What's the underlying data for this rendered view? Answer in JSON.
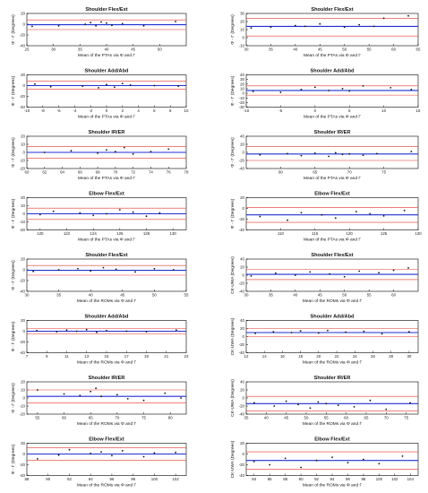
{
  "chart_data": [
    {
      "type": "scatter",
      "title": "Shoulder Flex/Ext",
      "ylabel": "Φ - Γ",
      "yunit": "(Degrees)",
      "xlabel_parts": [
        "Mean of the PTAs via",
        "Φ",
        "and",
        "Γ"
      ],
      "xlim": [
        25,
        55
      ],
      "xticks": [
        25,
        30,
        35,
        40,
        45,
        50
      ],
      "ylim": [
        -40,
        20
      ],
      "yticks": [
        -40,
        -20,
        0,
        20
      ],
      "mean": -1,
      "upper": 8,
      "lower": -10,
      "x": [
        26,
        31,
        36,
        37,
        38,
        39,
        40,
        41,
        43,
        47,
        53
      ],
      "y": [
        -4,
        -3,
        0,
        3,
        -3,
        4,
        2,
        -2,
        1,
        -3,
        5
      ]
    },
    {
      "type": "scatter",
      "title": "Shoulder Flex/Ext",
      "ylabel": "Φ - Γ",
      "yunit": "(Degrees)",
      "xlabel_parts": [
        "Mean of the PTAs via",
        "Φ",
        "and",
        "Γ"
      ],
      "xlim": [
        30,
        65
      ],
      "xticks": [
        30,
        35,
        40,
        45,
        50,
        55,
        60,
        65
      ],
      "ylim": [
        -10,
        30
      ],
      "yticks": [
        -10,
        0,
        10,
        20,
        30
      ],
      "mean": 14,
      "upper": 24,
      "lower": 2,
      "x": [
        31,
        35,
        40,
        42,
        45,
        50,
        53,
        56,
        58,
        63
      ],
      "y": [
        12,
        13,
        15,
        14,
        17,
        13,
        16,
        14,
        24,
        27
      ]
    },
    {
      "type": "scatter",
      "title": "Shoulder Add/Abd",
      "ylabel": "Φ - Γ",
      "yunit": "(Degrees)",
      "xlabel_parts": [
        "Mean of the PTAs via",
        "Φ",
        "and",
        "Γ"
      ],
      "xlim": [
        -10,
        10
      ],
      "xticks": [
        -10,
        -8,
        -6,
        -4,
        -2,
        0,
        2,
        4,
        6,
        8,
        10
      ],
      "ylim": [
        -40,
        20
      ],
      "yticks": [
        -40,
        -20,
        0,
        20
      ],
      "mean": 0,
      "upper": 8,
      "lower": -7,
      "x": [
        -9,
        -7,
        -3,
        -1,
        0,
        1,
        2,
        3,
        6,
        9
      ],
      "y": [
        3,
        -2,
        -1,
        -4,
        2,
        -3,
        4,
        1,
        0,
        -1
      ]
    },
    {
      "type": "scatter",
      "title": "Shoulder Add/Abd",
      "ylabel": "Φ - Γ",
      "yunit": "(Degrees)",
      "xlabel_parts": [
        "Mean of the PTAs via",
        "Φ",
        "and",
        "Γ"
      ],
      "xlim": [
        -10,
        15
      ],
      "xticks": [
        -10,
        -5,
        0,
        5,
        10,
        15
      ],
      "ylim": [
        -30,
        40
      ],
      "yticks": [
        -30,
        -20,
        -10,
        0,
        10,
        20,
        30,
        40
      ],
      "mean": 6,
      "upper": 16,
      "lower": -4,
      "x": [
        -9,
        -5,
        -2,
        0,
        2,
        4,
        5,
        7,
        11,
        14
      ],
      "y": [
        4,
        2,
        8,
        13,
        6,
        10,
        5,
        16,
        12,
        8
      ]
    },
    {
      "type": "scatter",
      "title": "Shoulder IR/ER",
      "ylabel": "Φ - Γ",
      "yunit": "(Degrees)",
      "xlabel_parts": [
        "Mean of the PTAs via",
        "Φ",
        "and",
        "Γ"
      ],
      "xlim": [
        60,
        78
      ],
      "xticks": [
        60,
        62,
        64,
        66,
        68,
        70,
        72,
        74,
        76,
        78
      ],
      "ylim": [
        -20,
        20
      ],
      "yticks": [
        -20,
        -10,
        0,
        10,
        20
      ],
      "mean": 0,
      "upper": 7,
      "lower": -7,
      "x": [
        62,
        65,
        68,
        69,
        70,
        71,
        72,
        74,
        76
      ],
      "y": [
        0,
        2,
        -1,
        3,
        1,
        6,
        -2,
        1,
        4
      ]
    },
    {
      "type": "scatter",
      "title": "Shoulder IR/ER",
      "ylabel": "Φ - Γ",
      "yunit": "(Degrees)",
      "xlabel_parts": [
        "Mean of the PTAs via",
        "Φ",
        "and",
        "Γ"
      ],
      "xlim": [
        55,
        80
      ],
      "xticks": [
        60,
        65,
        70,
        75
      ],
      "ylim": [
        -40,
        40
      ],
      "yticks": [
        -40,
        -20,
        0,
        20,
        40
      ],
      "mean": -4,
      "upper": 14,
      "lower": -20,
      "x": [
        57,
        61,
        63,
        65,
        67,
        68,
        69,
        70,
        72,
        74,
        79
      ],
      "y": [
        -6,
        -3,
        -8,
        -2,
        -10,
        -1,
        -5,
        -4,
        -7,
        -3,
        2
      ]
    },
    {
      "type": "scatter",
      "title": "Elbow Flex/Ext",
      "ylabel": "Φ - Γ",
      "yunit": "(Degrees)",
      "xlabel_parts": [
        "Mean of the PTAs via",
        "Φ",
        "and",
        "Γ"
      ],
      "xlim": [
        119,
        131
      ],
      "xticks": [
        120,
        122,
        124,
        126,
        128,
        130
      ],
      "ylim": [
        -20,
        20
      ],
      "yticks": [
        -20,
        -10,
        0,
        10,
        20
      ],
      "mean": 0,
      "upper": 7,
      "lower": -7,
      "x": [
        120,
        121,
        123,
        124,
        125,
        126,
        127,
        128,
        129
      ],
      "y": [
        -1,
        3,
        1,
        -2,
        0,
        5,
        2,
        -3,
        1
      ]
    },
    {
      "type": "scatter",
      "title": "Elbow Flex/Ext",
      "ylabel": "Φ - Γ",
      "yunit": "(Degrees)",
      "xlabel_parts": [
        "Mean of the PTAs via",
        "Φ",
        "and",
        "Γ"
      ],
      "xlim": [
        105,
        130
      ],
      "xticks": [
        110,
        115,
        120,
        125,
        130
      ],
      "ylim": [
        -40,
        20
      ],
      "yticks": [
        -40,
        -20,
        0,
        20
      ],
      "mean": -12,
      "upper": 2,
      "lower": -26,
      "x": [
        107,
        111,
        113,
        116,
        118,
        121,
        123,
        125,
        128
      ],
      "y": [
        -15,
        -22,
        -8,
        -12,
        -18,
        -6,
        -10,
        -14,
        -4
      ]
    },
    {
      "type": "scatter",
      "title": "Shoulder Flex/Ext",
      "ylabel": "Φ - Γ",
      "yunit": "(Degrees)",
      "xlabel_parts": [
        "Mean of the ROMs via",
        "Φ",
        "and",
        "Γ"
      ],
      "xlim": [
        30,
        55
      ],
      "xticks": [
        30,
        35,
        40,
        45,
        50,
        55
      ],
      "ylim": [
        -40,
        20
      ],
      "yticks": [
        -40,
        -20,
        0,
        20
      ],
      "mean": -1,
      "upper": 8,
      "lower": -10,
      "x": [
        31,
        35,
        38,
        40,
        42,
        44,
        47,
        50,
        53
      ],
      "y": [
        -3,
        0,
        2,
        -2,
        4,
        1,
        -4,
        2,
        0
      ]
    },
    {
      "type": "scatter",
      "title": "Shoulder Flex/Ext",
      "ylabel": "CK-UWA",
      "yunit": "(Degrees)",
      "xlabel_parts": [
        "Mean of the ROMs via",
        "Φ",
        "and",
        "Γ"
      ],
      "xlim": [
        30,
        65
      ],
      "xticks": [
        30,
        35,
        40,
        45,
        50,
        55,
        60
      ],
      "ylim": [
        -40,
        40
      ],
      "yticks": [
        -40,
        -20,
        0,
        20,
        40
      ],
      "mean": 2,
      "upper": 15,
      "lower": -11,
      "x": [
        31,
        36,
        40,
        43,
        47,
        50,
        53,
        57,
        60,
        63
      ],
      "y": [
        -2,
        5,
        0,
        8,
        3,
        -4,
        10,
        6,
        12,
        18
      ]
    },
    {
      "type": "scatter",
      "title": "Shoulder Add/Abd",
      "ylabel": "Φ - Γ",
      "yunit": "(Degrees)",
      "xlabel_parts": [
        "Mean of the ROMs via",
        "Φ",
        "and",
        "Γ"
      ],
      "xlim": [
        7,
        23
      ],
      "xticks": [
        7,
        9,
        11,
        13,
        15,
        17,
        19,
        21,
        23
      ],
      "ylim": [
        -40,
        20
      ],
      "yticks": [
        -40,
        -20,
        0,
        20
      ],
      "mean": 0,
      "upper": 5,
      "lower": -5,
      "x": [
        8,
        10,
        11,
        12,
        13,
        14,
        15,
        17,
        19,
        22
      ],
      "y": [
        1,
        -1,
        2,
        0,
        3,
        -2,
        1,
        0,
        -1,
        2
      ]
    },
    {
      "type": "scatter",
      "title": "Shoulder Add/Abd",
      "ylabel": "CK-UWA",
      "yunit": "(Degrees)",
      "xlabel_parts": [
        "Mean of the ROMs via",
        "Φ",
        "and",
        "Γ"
      ],
      "xlim": [
        12,
        31
      ],
      "xticks": [
        12,
        14,
        16,
        18,
        20,
        22,
        24,
        26,
        28,
        30
      ],
      "ylim": [
        -40,
        40
      ],
      "yticks": [
        -40,
        -20,
        0,
        20,
        40
      ],
      "mean": 10,
      "upper": 20,
      "lower": 0,
      "x": [
        13,
        15,
        17,
        18,
        20,
        21,
        23,
        25,
        27,
        30
      ],
      "y": [
        8,
        12,
        10,
        14,
        9,
        15,
        11,
        13,
        7,
        12
      ]
    },
    {
      "type": "scatter",
      "title": "Shoulder IR/ER",
      "ylabel": "Φ - Γ",
      "yunit": "(Degrees)",
      "xlabel_parts": [
        "Mean of the ROMs via",
        "Φ",
        "and",
        "Γ"
      ],
      "xlim": [
        53,
        83
      ],
      "xticks": [
        55,
        60,
        65,
        70,
        75,
        80
      ],
      "ylim": [
        -20,
        20
      ],
      "yticks": [
        -20,
        -10,
        0,
        10,
        20
      ],
      "mean": 2,
      "upper": 10,
      "lower": -6,
      "x": [
        55,
        60,
        63,
        65,
        66,
        67,
        70,
        72,
        75,
        79,
        82
      ],
      "y": [
        10,
        5,
        3,
        8,
        12,
        2,
        4,
        -1,
        -3,
        6,
        0
      ]
    },
    {
      "type": "scatter",
      "title": "Shoulder IR/ER",
      "ylabel": "CK-UWA",
      "yunit": "(Degrees)",
      "xlabel_parts": [
        "Mean of the ROMs via",
        "Φ",
        "and",
        "Γ"
      ],
      "xlim": [
        35,
        78
      ],
      "xticks": [
        35,
        40,
        45,
        50,
        55,
        60,
        65,
        70,
        75
      ],
      "ylim": [
        -40,
        40
      ],
      "yticks": [
        -40,
        -20,
        0,
        20,
        40
      ],
      "mean": -14,
      "upper": 4,
      "lower": -32,
      "x": [
        37,
        42,
        45,
        48,
        51,
        53,
        55,
        58,
        62,
        66,
        70,
        76
      ],
      "y": [
        -12,
        -20,
        -8,
        -16,
        -25,
        -10,
        -14,
        -18,
        -22,
        -6,
        -28,
        -12
      ]
    },
    {
      "type": "scatter",
      "title": "Elbow Flex/Ext",
      "ylabel": "Φ - Γ",
      "yunit": "(Degrees)",
      "xlabel_parts": [
        "Mean of the ROMs via",
        "Φ",
        "and",
        "Γ"
      ],
      "xlim": [
        88,
        103
      ],
      "xticks": [
        88,
        90,
        92,
        94,
        96,
        98,
        100,
        102
      ],
      "ylim": [
        -40,
        20
      ],
      "yticks": [
        -40,
        -20,
        0,
        20
      ],
      "mean": 0,
      "upper": 12,
      "lower": -12,
      "x": [
        89,
        91,
        92,
        94,
        95,
        96,
        97,
        99,
        100,
        102
      ],
      "y": [
        -9,
        -2,
        8,
        1,
        4,
        -3,
        6,
        -5,
        2,
        3
      ]
    },
    {
      "type": "scatter",
      "title": "Elbow Flex/Ext",
      "ylabel": "CK-UWA",
      "yunit": "(Degrees)",
      "xlabel_parts": [
        "Mean of the ROMs via",
        "Φ",
        "and",
        "Γ"
      ],
      "xlim": [
        83,
        105
      ],
      "xticks": [
        84,
        86,
        88,
        90,
        92,
        94,
        96,
        98,
        100,
        102,
        104
      ],
      "ylim": [
        -40,
        20
      ],
      "yticks": [
        -40,
        -20,
        0,
        20
      ],
      "mean": -12,
      "upper": 4,
      "lower": -28,
      "x": [
        84,
        86,
        88,
        90,
        92,
        94,
        96,
        98,
        100,
        103
      ],
      "y": [
        -14,
        -20,
        -8,
        -25,
        -12,
        -6,
        -16,
        -10,
        -18,
        -4
      ]
    }
  ]
}
